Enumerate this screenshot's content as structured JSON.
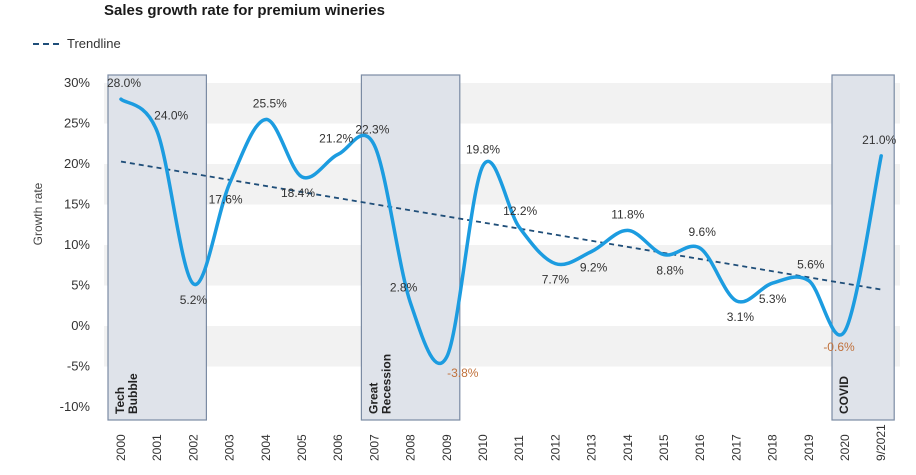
{
  "chart_data": {
    "type": "line",
    "title": "Sales growth rate for premium wineries",
    "ylabel": "Growth rate",
    "xlabel": "",
    "ylim": [
      -10,
      30
    ],
    "yticks": [
      {
        "v": 30,
        "label": "30%"
      },
      {
        "v": 25,
        "label": "25%"
      },
      {
        "v": 20,
        "label": "20%"
      },
      {
        "v": 15,
        "label": "15%"
      },
      {
        "v": 10,
        "label": "10%"
      },
      {
        "v": 5,
        "label": "5%"
      },
      {
        "v": 0,
        "label": "0%"
      },
      {
        "v": -5,
        "label": "-5%"
      },
      {
        "v": -10,
        "label": "-10%"
      }
    ],
    "categories": [
      "2000",
      "2001",
      "2002",
      "2003",
      "2004",
      "2005",
      "2006",
      "2007",
      "2008",
      "2009",
      "2010",
      "2011",
      "2012",
      "2013",
      "2014",
      "2015",
      "2016",
      "2017",
      "2018",
      "2019",
      "2020",
      "9/2021"
    ],
    "series": [
      {
        "values": [
          28.0,
          24.0,
          5.2,
          17.6,
          25.5,
          18.4,
          21.2,
          22.3,
          2.8,
          -3.8,
          19.8,
          12.2,
          7.7,
          9.2,
          11.8,
          8.8,
          9.6,
          3.1,
          5.3,
          5.6,
          -0.6,
          21.0
        ],
        "labels": [
          "28.0%",
          "24.0%",
          "5.2%",
          "17.6%",
          "25.5%",
          "18.4%",
          "21.2%",
          "22.3%",
          "2.8%",
          "-3.8%",
          "19.8%",
          "12.2%",
          "7.7%",
          "9.2%",
          "11.8%",
          "8.8%",
          "9.6%",
          "3.1%",
          "5.3%",
          "5.6%",
          "-0.6%",
          "21.0%"
        ],
        "color": "#1c9ce0"
      }
    ],
    "trendline": {
      "name": "Trendline",
      "start": 20.3,
      "end": 4.5,
      "color": "#1f4e79"
    },
    "shaded_periods": [
      {
        "from": 0,
        "to": 2,
        "label": [
          "Tech",
          "Bubble"
        ]
      },
      {
        "from": 7,
        "to": 9,
        "label": [
          "Great",
          "Recession"
        ]
      },
      {
        "from": 20,
        "to": 21,
        "label": [
          "COVID"
        ]
      }
    ],
    "negative_label_color": "#c0703a",
    "band_color": "#f2f2f2",
    "period_fill": "#dfe3ea",
    "period_stroke": "#7b8ba3",
    "grid": false,
    "legend": "top-left"
  }
}
